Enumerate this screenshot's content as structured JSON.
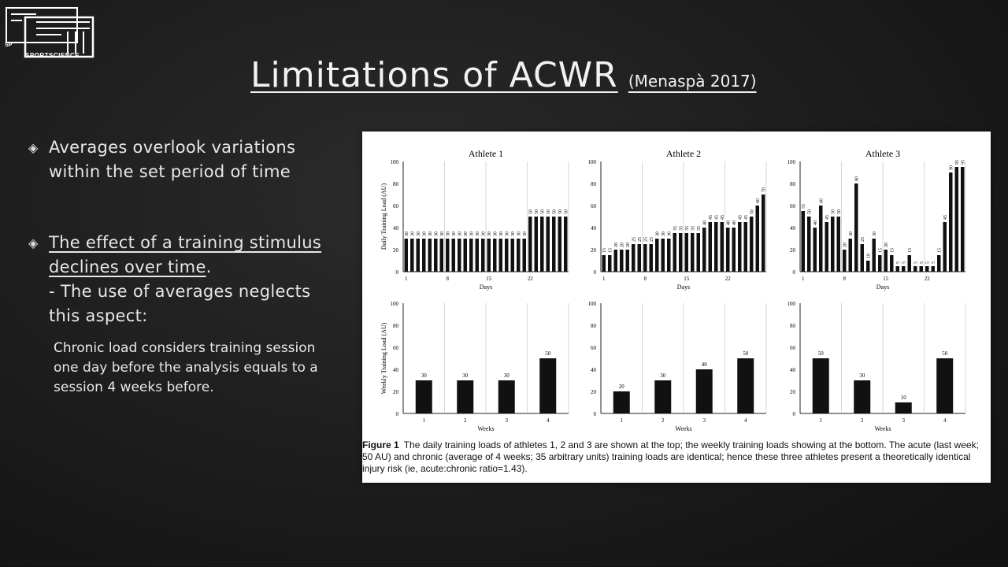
{
  "logo": {
    "text": "SPORTSCIENCE",
    "prefix": "SP"
  },
  "title": {
    "main": "Limitations of ACWR",
    "sub": "(Menaspà 2017)"
  },
  "bullets": [
    {
      "lines": [
        "Averages overlook variations",
        "within the set period of time"
      ]
    },
    {
      "underlined": [
        "The effect of a training stimulus",
        "declines over time"
      ],
      "after": ".",
      "lines": [
        "- The use of averages neglects",
        "this aspect:"
      ]
    }
  ],
  "subtext": [
    "Chronic load considers training session",
    "one day before the analysis equals to a",
    "session 4 weeks before."
  ],
  "figure": {
    "caption_label": "Figure 1",
    "caption_text": "The daily training loads of athletes 1, 2 and 3 are shown at the top; the weekly training loads showing at the bottom. The acute (last week; 50 AU) and chronic (average of 4 weeks; 35 arbitrary units) training loads are identical; hence these three athletes present a theoretically identical injury risk (ie, acute:chronic ratio=1.43)."
  },
  "chart_data": [
    {
      "type": "bar",
      "title": "Athlete 1",
      "ylabel": "Daily Training Load (AU)",
      "xlabel": "Days",
      "ylim": [
        0,
        100
      ],
      "yticks": [
        0,
        20,
        40,
        60,
        80,
        100
      ],
      "xticks": [
        "1",
        "8",
        "15",
        "22"
      ],
      "values": [
        30,
        30,
        30,
        30,
        30,
        30,
        30,
        30,
        30,
        30,
        30,
        30,
        30,
        30,
        30,
        30,
        30,
        30,
        30,
        30,
        30,
        50,
        50,
        50,
        50,
        50,
        50,
        50
      ]
    },
    {
      "type": "bar",
      "title": "Athlete 2",
      "ylabel": "",
      "xlabel": "Days",
      "ylim": [
        0,
        100
      ],
      "yticks": [
        0,
        20,
        40,
        60,
        80,
        100
      ],
      "xticks": [
        "1",
        "8",
        "15",
        "22"
      ],
      "values": [
        15,
        15,
        20,
        20,
        20,
        25,
        25,
        25,
        25,
        30,
        30,
        30,
        35,
        35,
        35,
        35,
        35,
        40,
        45,
        45,
        45,
        40,
        40,
        45,
        45,
        50,
        60,
        70
      ]
    },
    {
      "type": "bar",
      "title": "Athlete 3",
      "ylabel": "",
      "xlabel": "Days",
      "ylim": [
        0,
        100
      ],
      "yticks": [
        0,
        20,
        40,
        60,
        80,
        100
      ],
      "xticks": [
        "1",
        "8",
        "15",
        "22"
      ],
      "values": [
        55,
        50,
        40,
        60,
        45,
        50,
        50,
        20,
        30,
        80,
        25,
        10,
        30,
        15,
        20,
        15,
        5,
        5,
        15,
        5,
        5,
        5,
        5,
        15,
        45,
        90,
        95,
        95
      ]
    },
    {
      "type": "bar",
      "title": "",
      "ylabel": "Weekly Training Load (AU)",
      "xlabel": "Weeks",
      "ylim": [
        0,
        100
      ],
      "yticks": [
        0,
        20,
        40,
        60,
        80,
        100
      ],
      "categories": [
        "1",
        "2",
        "3",
        "4"
      ],
      "values": [
        30,
        30,
        30,
        50
      ]
    },
    {
      "type": "bar",
      "title": "",
      "ylabel": "",
      "xlabel": "Weeks",
      "ylim": [
        0,
        100
      ],
      "yticks": [
        0,
        20,
        40,
        60,
        80,
        100
      ],
      "categories": [
        "1",
        "2",
        "3",
        "4"
      ],
      "values": [
        20,
        30,
        40,
        50
      ]
    },
    {
      "type": "bar",
      "title": "",
      "ylabel": "",
      "xlabel": "Weeks",
      "ylim": [
        0,
        100
      ],
      "yticks": [
        0,
        20,
        40,
        60,
        80,
        100
      ],
      "categories": [
        "1",
        "2",
        "3",
        "4"
      ],
      "values": [
        50,
        30,
        10,
        50
      ]
    }
  ]
}
